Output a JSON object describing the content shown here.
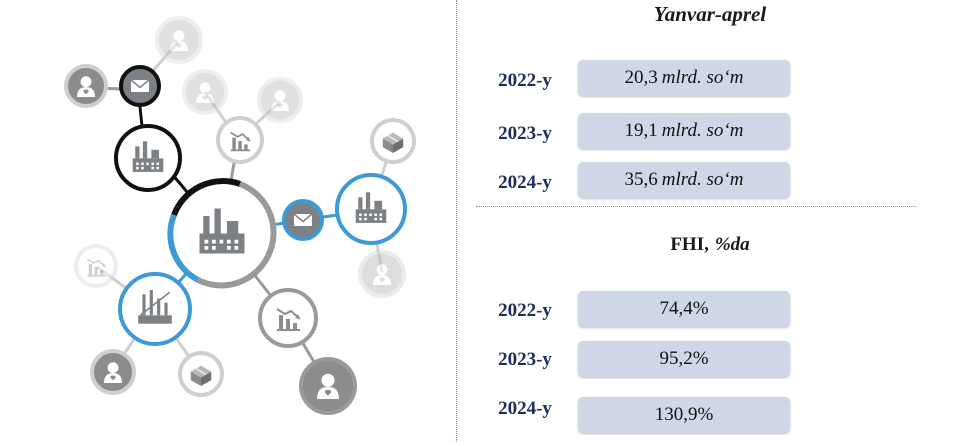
{
  "section1": {
    "title": "Yanvar-aprel",
    "rows": [
      {
        "year": "2022-y",
        "value": "20,3",
        "unit": "mlrd. so‘m"
      },
      {
        "year": "2023-y",
        "value": "19,1",
        "unit": "mlrd. so‘m"
      },
      {
        "year": "2024-y",
        "value": "35,6",
        "unit": "mlrd. so‘m"
      }
    ]
  },
  "section2": {
    "title": "FHI,",
    "title_unit": "%da",
    "rows": [
      {
        "year": "2022-y",
        "value": "74,4%"
      },
      {
        "year": "2023-y",
        "value": "95,2%"
      },
      {
        "year": "2024-y",
        "value": "130,9%"
      }
    ]
  },
  "network_icons": {
    "center": "factory-icon",
    "nodes": [
      "person-icon",
      "envelope-icon",
      "chart-down-icon",
      "package-icon",
      "oil-refinery-icon"
    ]
  },
  "colors": {
    "blue": "#3d9ad6",
    "black": "#111111",
    "gray": "#8c8c8c",
    "light_gray": "#d6d6d6",
    "pill": "#cfd7e6",
    "year_text": "#1f2d5a"
  }
}
